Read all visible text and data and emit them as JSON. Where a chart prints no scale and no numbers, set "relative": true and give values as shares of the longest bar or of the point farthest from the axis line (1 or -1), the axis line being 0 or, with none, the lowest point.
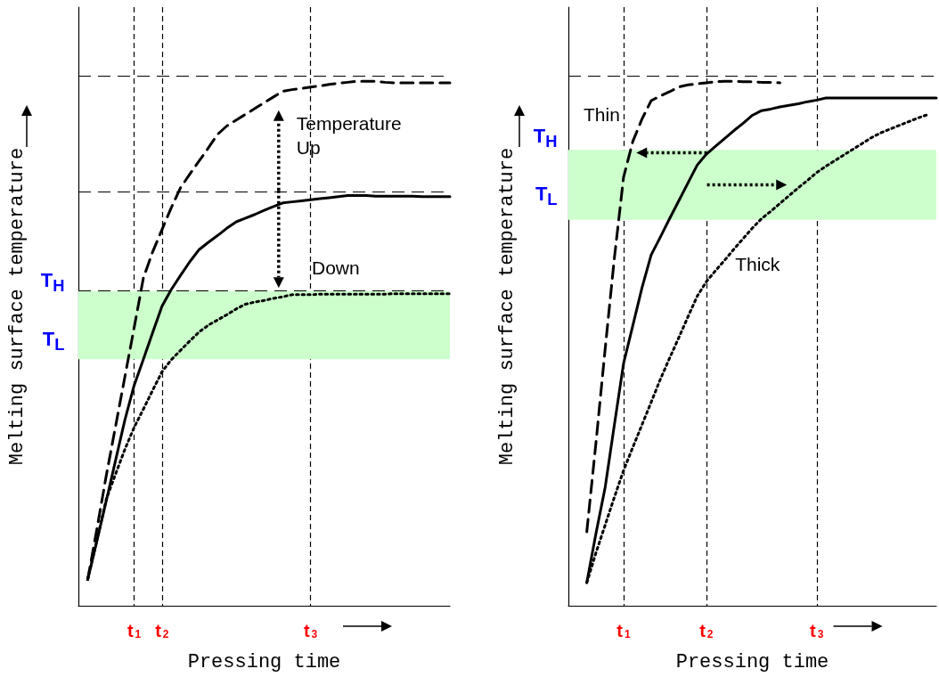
{
  "chart_data": [
    {
      "type": "line",
      "relative": true,
      "xlabel": "Pressing time",
      "ylabel": "Melting surface temperature",
      "marker": "none",
      "grid": "x",
      "tick_labels": "x",
      "categories": [
        null,
        null,
        null,
        null,
        null,
        null,
        "t$_{1}$",
        null,
        null,
        "t$_{2}$",
        null,
        null,
        null,
        null,
        null,
        null,
        null,
        null,
        null,
        null,
        null,
        null,
        null,
        null,
        null,
        "t$_{3}$",
        null,
        null,
        null,
        null,
        null,
        null,
        null,
        null,
        null,
        null,
        null,
        null,
        null,
        null,
        null
      ],
      "series": [
        {
          "color": "#000000",
          "line_style": "dashed",
          "values": [
            null,
            0.05,
            0.147,
            0.248,
            0.342,
            0.436,
            0.53,
            0.625,
            0.675,
            0.717,
            0.759,
            0.797,
            0.823,
            0.848,
            0.873,
            0.899,
            0.915,
            0.926,
            0.937,
            0.948,
            0.959,
            0.97,
            0.981,
            0.984,
            0.986,
            0.989,
            0.991,
            0.994,
            0.996,
            0.998,
            1.0,
            1.0,
            1.0,
            0.998,
            0.997,
            0.997,
            0.997,
            0.997,
            0.997,
            0.997,
            0.997
          ]
        },
        {
          "color": "#000000",
          "line_style": "solid",
          "values": [
            null,
            0.05,
            0.124,
            0.2,
            0.277,
            0.354,
            0.42,
            0.47,
            0.521,
            0.571,
            0.603,
            0.63,
            0.656,
            0.679,
            0.693,
            0.706,
            0.72,
            0.732,
            0.739,
            0.746,
            0.754,
            0.761,
            0.768,
            0.77,
            0.772,
            0.774,
            0.776,
            0.778,
            0.78,
            0.782,
            0.782,
            0.782,
            0.781,
            0.781,
            0.781,
            0.781,
            0.781,
            0.78,
            0.78,
            0.78,
            0.78
          ]
        },
        {
          "color": "#000000",
          "line_style": "dotted",
          "values": [
            null,
            0.05,
            0.125,
            0.203,
            0.251,
            0.298,
            0.34,
            0.375,
            0.411,
            0.446,
            0.469,
            0.487,
            0.505,
            0.522,
            0.535,
            0.545,
            0.555,
            0.566,
            0.575,
            0.579,
            0.582,
            0.586,
            0.589,
            0.593,
            0.593,
            0.593,
            0.594,
            0.594,
            0.594,
            0.594,
            0.594,
            0.594,
            0.594,
            0.594,
            0.595,
            0.595,
            0.595,
            0.595,
            0.595,
            0.595,
            0.595
          ]
        }
      ],
      "ref_lines": [
        {
          "axis": "y",
          "value": 1.01,
          "label": null,
          "line_style": "dashed"
        },
        {
          "axis": "y",
          "value": 0.792,
          "label": null,
          "line_style": "dashed"
        },
        {
          "axis": "y",
          "value": 0.6,
          "label": null,
          "line_style": "dashed"
        }
      ],
      "bands": [
        {
          "axis": "y",
          "from": 0.47,
          "to": 0.6,
          "label": null,
          "color": "#ccffcc"
        }
      ],
      "annotations": [
        "Temperature Up",
        "Down",
        "T$_{H}$",
        "T$_{L}$"
      ]
    },
    {
      "type": "line",
      "relative": true,
      "xlabel": "Pressing time",
      "ylabel": "Melting surface temperature",
      "marker": "none",
      "grid": "x",
      "tick_labels": "x",
      "categories": [
        null,
        null,
        null,
        null,
        null,
        null,
        "t$_{1}$",
        null,
        null,
        null,
        null,
        null,
        null,
        null,
        null,
        "t$_{2}$",
        null,
        null,
        null,
        null,
        null,
        null,
        null,
        null,
        null,
        null,
        null,
        "t$_{3}$",
        null,
        null,
        null,
        null,
        null,
        null,
        null,
        null,
        null,
        null,
        null,
        null,
        null
      ],
      "series": [
        {
          "color": "#000000",
          "line_style": "dashed",
          "values": [
            null,
            null,
            0.141,
            0.311,
            0.49,
            0.663,
            0.817,
            0.885,
            0.928,
            0.963,
            0.972,
            0.98,
            0.989,
            0.993,
            0.995,
            0.997,
            0.999,
            1.0,
            1.0,
            0.999,
            0.999,
            0.998,
            0.998,
            0.997,
            null,
            null,
            null,
            null,
            null,
            null,
            null,
            null,
            null,
            null,
            null,
            null,
            null,
            null,
            null,
            null,
            null
          ]
        },
        {
          "color": "#000000",
          "line_style": "solid",
          "values": [
            null,
            null,
            0.044,
            0.138,
            0.226,
            0.345,
            0.462,
            0.534,
            0.606,
            0.669,
            0.703,
            0.738,
            0.772,
            0.806,
            0.84,
            0.861,
            0.876,
            0.891,
            0.906,
            0.92,
            0.935,
            0.944,
            0.947,
            0.951,
            0.954,
            0.957,
            0.961,
            0.964,
            0.968,
            0.968,
            0.968,
            0.968,
            0.968,
            0.968,
            0.968,
            0.968,
            0.968,
            0.968,
            0.968,
            0.968,
            0.968
          ]
        },
        {
          "color": "#000000",
          "line_style": "dotted",
          "values": [
            null,
            null,
            0.044,
            0.101,
            0.154,
            0.207,
            0.258,
            0.302,
            0.345,
            0.388,
            0.432,
            0.472,
            0.511,
            0.551,
            0.59,
            0.618,
            0.639,
            0.659,
            0.68,
            0.7,
            0.72,
            0.738,
            0.752,
            0.767,
            0.782,
            0.797,
            0.811,
            0.826,
            0.838,
            0.849,
            0.86,
            0.871,
            0.882,
            0.893,
            0.902,
            0.909,
            0.916,
            0.923,
            0.93,
            0.936,
            null
          ]
        }
      ],
      "ref_lines": [
        {
          "axis": "y",
          "value": 1.01,
          "label": null,
          "line_style": "dashed"
        }
      ],
      "bands": [
        {
          "axis": "y",
          "from": 0.736,
          "to": 0.869,
          "label": null,
          "color": "#ccffcc"
        }
      ],
      "annotations": [
        "Thin",
        "Thick",
        "T$_{H}$",
        "T$_{L}$"
      ]
    }
  ]
}
